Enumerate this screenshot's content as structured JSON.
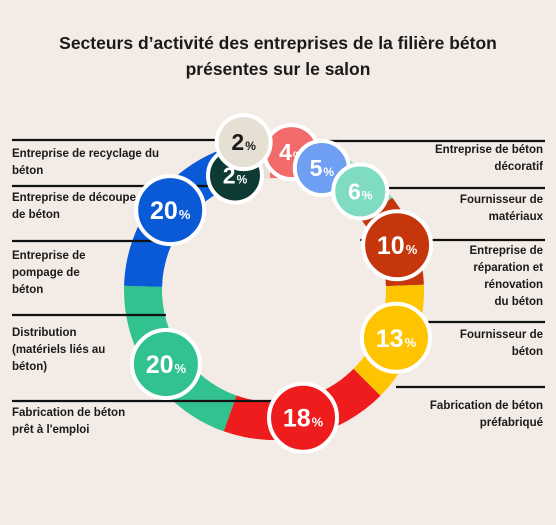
{
  "title_lines": [
    "Secteurs d’activité des entreprises de la filière béton",
    "présentes sur le salon"
  ],
  "chart_data": {
    "type": "pie",
    "variant": "donut",
    "title": "Secteurs d’activité des entreprises de la filière béton présentes sur le salon",
    "unit": "%",
    "slices": [
      {
        "label": "Entreprise de béton décoratif",
        "value": 4,
        "color": "#f26a6a"
      },
      {
        "label": "Fournisseur de matériaux",
        "value": 5,
        "color": "#6e9ff2"
      },
      {
        "label": "Entreprise de réparation et rénovation du béton",
        "value": 6,
        "color": "#7fdbc2"
      },
      {
        "label": "Fournisseur de béton",
        "value": 10,
        "color": "#c6360c"
      },
      {
        "label": "Fabrication de béton préfabriqué",
        "value": 13,
        "color": "#ffc400"
      },
      {
        "label": "Fabrication de béton prêt à l'emploi",
        "value": 18,
        "color": "#ee1c1c"
      },
      {
        "label": "Distribution (matériels liés au béton)",
        "value": 20,
        "color": "#32c28f"
      },
      {
        "label": "Entreprise de pompage de béton",
        "value": 20,
        "color": "#0a5ad8"
      },
      {
        "label": "Entreprise de découpe de béton",
        "value": 2,
        "color": "#0d3a33"
      },
      {
        "label": "Entreprise de recyclage du béton",
        "value": 2,
        "color": "#e6dfd3"
      }
    ]
  }
}
